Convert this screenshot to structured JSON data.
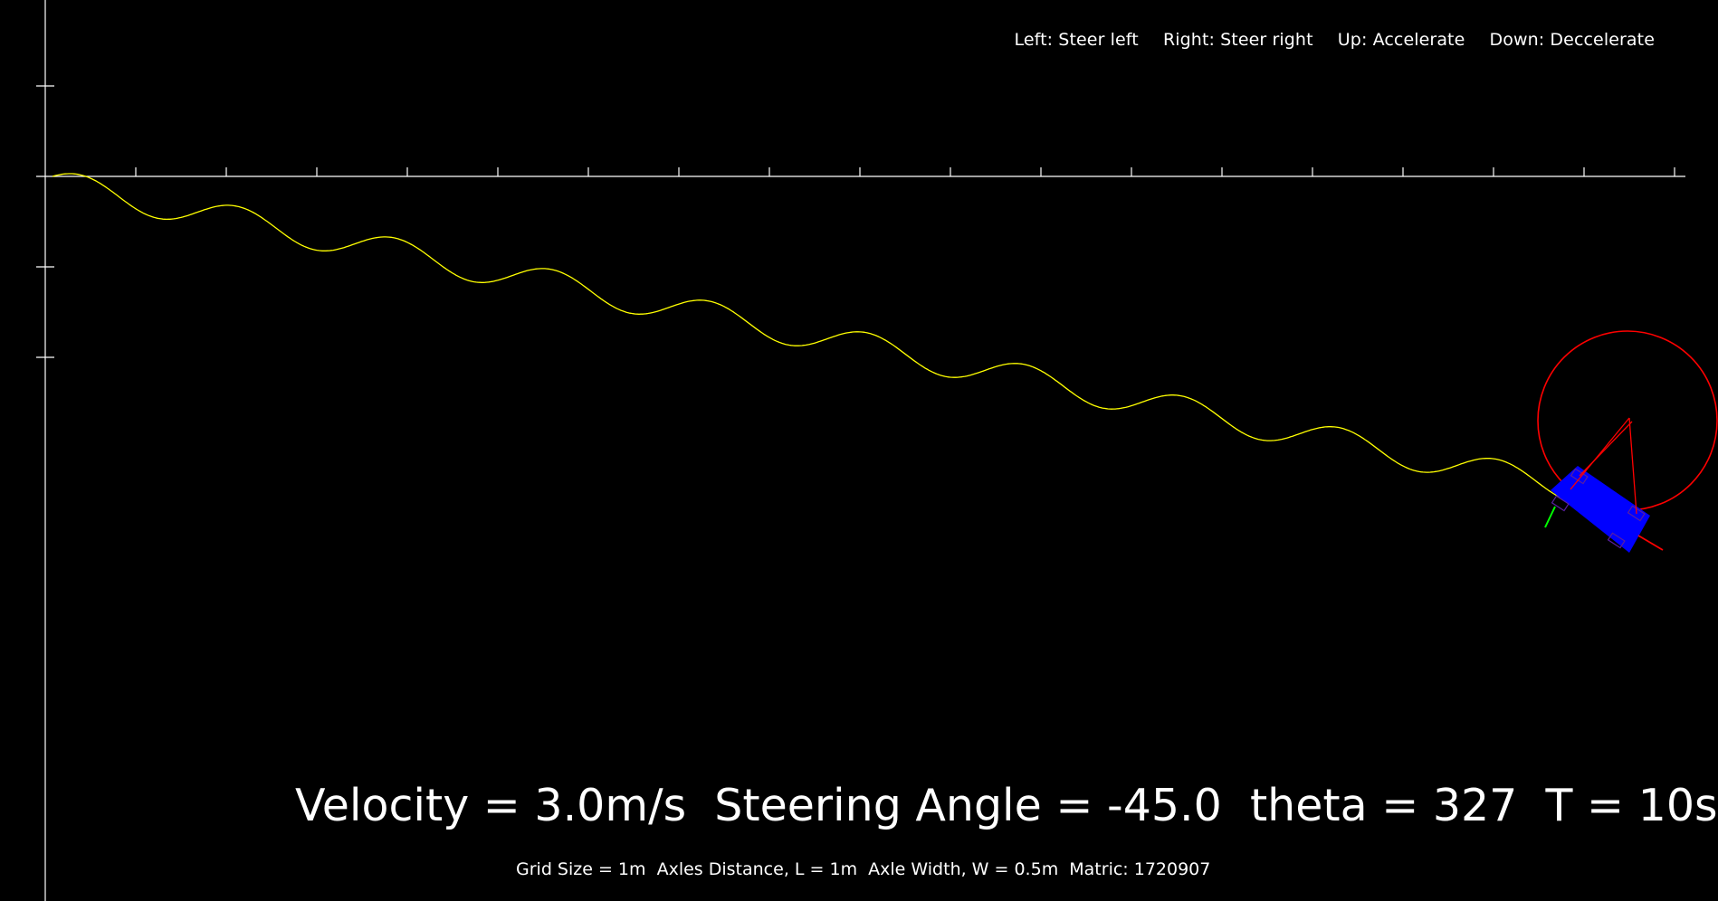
{
  "controls": {
    "left": "Left: Steer left",
    "right": "Right: Steer right",
    "up": "Up: Accelerate",
    "down": "Down: Deccelerate"
  },
  "status": {
    "text": "Velocity = 3.0m/s  Steering Angle = -45.0  theta = 327  T = 10s"
  },
  "info": {
    "text": "Grid Size = 1m  Axles Distance, L = 1m  Axle Width, W = 0.5m  Matric: 1720907"
  },
  "colors": {
    "background": "#000000",
    "axis": "#ffffff",
    "trajectory": "#ffff00",
    "vehicle_body": "#0000ff",
    "turning_circle": "#ff0000",
    "heading_vector": "#ff0000",
    "lateral_vector": "#00ff00"
  },
  "icons": {
    "vehicle": "car-icon"
  }
}
